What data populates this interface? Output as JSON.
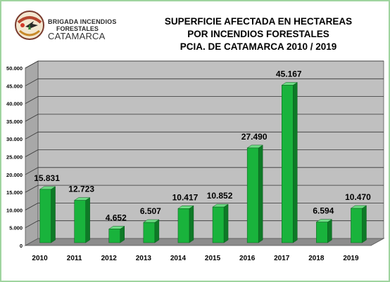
{
  "logo": {
    "line1": "BRIGADA INCENDIOS",
    "line2": "FORESTALES",
    "line3": "CATAMARCA"
  },
  "chart_data": {
    "type": "bar",
    "title": [
      "SUPERFICIE  AFECTADA EN HECTAREAS",
      "POR INCENDIOS  FORESTALES",
      "PCIA. DE CATAMARCA 2010 / 2019"
    ],
    "categories": [
      "2010",
      "2011",
      "2012",
      "2013",
      "2014",
      "2015",
      "2016",
      "2017",
      "2018",
      "2019"
    ],
    "values": [
      15831,
      12723,
      4652,
      6507,
      10417,
      10852,
      27490,
      45167,
      6594,
      10470
    ],
    "data_labels": [
      "15.831",
      "12.723",
      "4.652",
      "6.507",
      "10.417",
      "10.852",
      "27.490",
      "45.167",
      "6.594",
      "10.470"
    ],
    "y_ticks": [
      "0",
      "5.000",
      "10.000",
      "15.000",
      "20.000",
      "25.000",
      "30.000",
      "35.000",
      "40.000",
      "45.000",
      "50.000"
    ],
    "ylim": [
      0,
      50000
    ],
    "grid": true,
    "legend": "none",
    "colors": {
      "bar_front": "#19b33c",
      "bar_side": "#0e7a27",
      "bar_top": "#6fdc86",
      "wall": "#c0c0c0",
      "floor": "#8c8c8c"
    }
  }
}
